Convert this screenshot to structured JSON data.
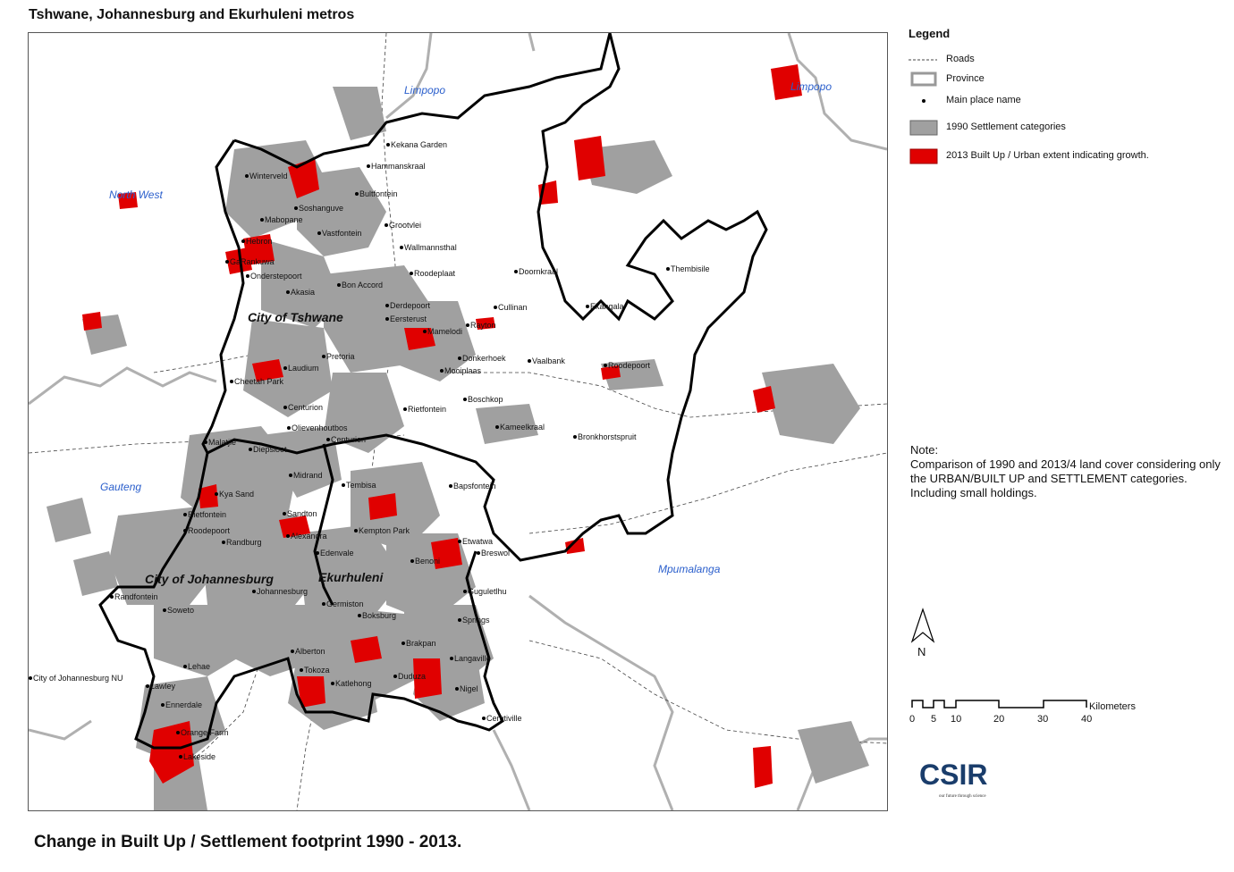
{
  "title": "Tshwane, Johannesburg and Ekurhuleni metros",
  "footer_title": "Change in Built Up / Settlement footprint 1990 - 2013.",
  "legend": {
    "title": "Legend",
    "roads": "Roads",
    "province": "Province",
    "main_place": "Main place name",
    "settlement_1990": "1990 Settlement categories",
    "builtup_2013": "2013 Built Up / Urban extent indicating growth."
  },
  "note": {
    "heading": "Note:",
    "text": "Comparison of 1990 and 2013/4 land cover considering only the URBAN/BUILT UP and SETTLEMENT categories. Including small holdings."
  },
  "north": "N",
  "scale": {
    "unit": "Kilometers",
    "ticks": [
      "0",
      "5",
      "10",
      "20",
      "30",
      "40"
    ]
  },
  "logo": {
    "text": "CSIR",
    "tagline": "our future through science"
  },
  "colors": {
    "settlement_1990": "#a0a0a0",
    "builtup_2013": "#e00000",
    "province_label": "#2b5fcc"
  },
  "provinces": [
    "Limpopo",
    "Limpopo",
    "North West",
    "Gauteng",
    "Mpumalanga"
  ],
  "metros": [
    "City of Tshwane",
    "City of Johannesburg",
    "Ekurhuleni"
  ],
  "places": [
    "Kekana Garden",
    "Hammanskraal",
    "Winterveld",
    "Bultfontein",
    "Soshanguve",
    "Mabopane",
    "Grootvlei",
    "Vastfontein",
    "Hebron",
    "Wallmannsthal",
    "GaRankuwa",
    "Roodeplaat",
    "Onderstepoort",
    "Doornkraal",
    "Thembisile",
    "Bon Accord",
    "Akasia",
    "Derdepoort",
    "Cullinan",
    "Ekangala",
    "Eersterust",
    "Rayton",
    "Mamelodi",
    "Pretoria",
    "Donkerhoek",
    "Vaalbank",
    "Roodepoort",
    "Laudium",
    "Mooiplaas",
    "Cheetah Park",
    "Boschkop",
    "Rietfontein",
    "Centurion",
    "Kameelkraal",
    "Olievenhoutbos",
    "Bronkhorstspruit",
    "Centurion",
    "Malatjie",
    "Diepsloot",
    "Midrand",
    "Tembisa",
    "Bapsfontein",
    "Kya Sand",
    "Rietfontein",
    "Sandton",
    "Roodepoort",
    "Randburg",
    "Alexandra",
    "Kempton Park",
    "Etwatwa",
    "Edenvale",
    "Breswol",
    "Benoni",
    "Randfontein",
    "Johannesburg",
    "Guguletlhu",
    "Soweto",
    "Germiston",
    "Boksburg",
    "Springs",
    "Brakpan",
    "Alberton",
    "Lehae",
    "Langaville",
    "Tokoza",
    "City of Johannesburg NU",
    "Katlehong",
    "Duduza",
    "Lawley",
    "Nigel",
    "Ennerdale",
    "Cerutiville",
    "Orange Farm",
    "Lakeside"
  ]
}
